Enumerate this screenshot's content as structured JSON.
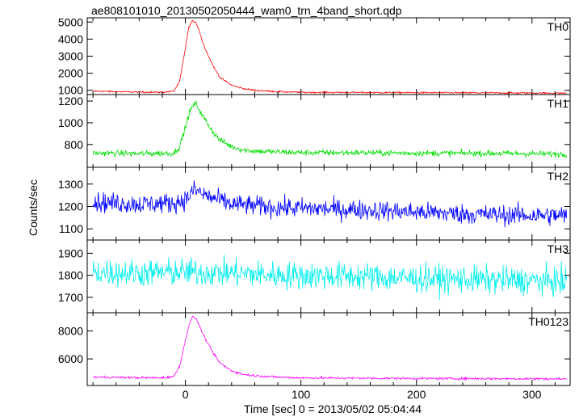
{
  "chart_data": {
    "type": "line",
    "title": "ae808101010_20130502050444_wam0_trn_4band_short.qdp",
    "xlabel": "Time [sec] 0 = 2013/05/02 05:04:44",
    "ylabel": "Counts/sec",
    "xlim": [
      -85,
      333
    ],
    "x_ticks": [
      0,
      100,
      200,
      300
    ],
    "grid": false,
    "panels": [
      {
        "name": "TH0",
        "color": "#ff0000",
        "ylim": [
          750,
          5250
        ],
        "y_ticks": [
          1000,
          2000,
          3000,
          4000,
          5000
        ],
        "x": [
          -80,
          -60,
          -40,
          -20,
          -10,
          -5,
          0,
          3,
          6,
          9,
          12,
          15,
          20,
          25,
          30,
          40,
          50,
          60,
          80,
          100,
          150,
          200,
          250,
          300,
          330
        ],
        "y": [
          950,
          920,
          900,
          880,
          950,
          1500,
          3500,
          4700,
          5050,
          5000,
          4500,
          3800,
          3000,
          2300,
          1750,
          1300,
          1100,
          1000,
          920,
          880,
          870,
          860,
          850,
          840,
          830
        ],
        "noise": 35
      },
      {
        "name": "TH1",
        "color": "#00dd00",
        "ylim": [
          590,
          1260
        ],
        "y_ticks": [
          800,
          1000,
          1200
        ],
        "x": [
          -80,
          -60,
          -40,
          -20,
          -10,
          -5,
          0,
          3,
          6,
          9,
          12,
          15,
          20,
          25,
          30,
          40,
          50,
          60,
          80,
          100,
          150,
          200,
          250,
          300,
          330
        ],
        "y": [
          720,
          720,
          715,
          720,
          720,
          780,
          960,
          1080,
          1150,
          1180,
          1120,
          1060,
          980,
          900,
          840,
          780,
          750,
          740,
          730,
          725,
          725,
          720,
          720,
          715,
          710
        ],
        "noise": 20
      },
      {
        "name": "TH2",
        "color": "#0000ff",
        "ylim": [
          1050,
          1375
        ],
        "y_ticks": [
          1100,
          1200,
          1300
        ],
        "x": [
          -80,
          -40,
          -10,
          0,
          8,
          15,
          25,
          40,
          80,
          150,
          200,
          250,
          300,
          330
        ],
        "y": [
          1220,
          1210,
          1215,
          1230,
          1275,
          1255,
          1235,
          1210,
          1195,
          1185,
          1175,
          1165,
          1160,
          1160
        ],
        "noise": 32
      },
      {
        "name": "TH3",
        "color": "#00eeee",
        "ylim": [
          1630,
          1960
        ],
        "y_ticks": [
          1700,
          1800,
          1900
        ],
        "x": [
          -80,
          -40,
          0,
          40,
          80,
          150,
          200,
          250,
          300,
          330
        ],
        "y": [
          1815,
          1810,
          1815,
          1810,
          1800,
          1795,
          1785,
          1780,
          1775,
          1770
        ],
        "noise": 45
      },
      {
        "name": "TH0123",
        "color": "#ff00ff",
        "ylim": [
          4100,
          9300
        ],
        "y_ticks": [
          6000,
          8000
        ],
        "x": [
          -80,
          -60,
          -40,
          -20,
          -10,
          -5,
          0,
          3,
          6,
          9,
          12,
          15,
          20,
          25,
          30,
          40,
          50,
          60,
          80,
          100,
          150,
          200,
          250,
          300,
          330
        ],
        "y": [
          4700,
          4680,
          4660,
          4650,
          4750,
          5500,
          7300,
          8400,
          9000,
          8900,
          8400,
          7800,
          7000,
          6300,
          5700,
          5150,
          4900,
          4800,
          4700,
          4650,
          4620,
          4600,
          4590,
          4580,
          4570
        ],
        "noise": 60
      }
    ]
  }
}
